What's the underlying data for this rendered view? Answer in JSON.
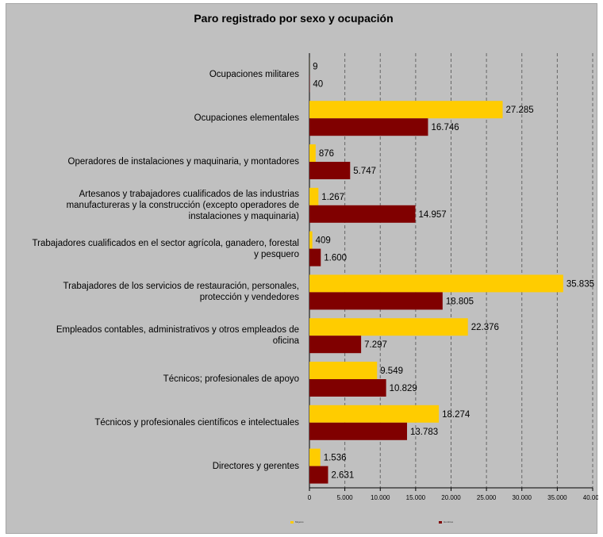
{
  "chart_data": {
    "type": "bar",
    "orientation": "horizontal",
    "title": "Paro registrado por sexo y ocupación",
    "categories": [
      "Ocupaciones militares",
      "Ocupaciones elementales",
      "Operadores de instalaciones y maquinaria, y montadores",
      "Artesanos y trabajadores cualificados de las industrias manufactureras y la construcción (excepto operadores de instalaciones y maquinaria)",
      "Trabajadores cualificados en el sector agrícola, ganadero, forestal y pesquero",
      "Trabajadores de los servicios de restauración, personales, protección y vendedores",
      "Empleados contables, administrativos y otros empleados de oficina",
      "Técnicos; profesionales de apoyo",
      "Técnicos y profesionales científicos e intelectuales",
      "Directores y gerentes"
    ],
    "series": [
      {
        "name": "Mujeres",
        "color": "#ffcc00",
        "values": [
          9,
          27285,
          876,
          1267,
          409,
          35835,
          22376,
          9549,
          18274,
          1536
        ],
        "labels": [
          "9",
          "27.285",
          "876",
          "1.267",
          "409",
          "35.835",
          "22.376",
          "9.549",
          "18.274",
          "1.536"
        ]
      },
      {
        "name": "Hombres",
        "color": "#800000",
        "values": [
          40,
          16746,
          5747,
          14957,
          1600,
          18805,
          7297,
          10829,
          13783,
          2631
        ],
        "labels": [
          "40",
          "16.746",
          "5.747",
          "14.957",
          "1.600",
          "18.805",
          "7.297",
          "10.829",
          "13.783",
          "2.631"
        ]
      }
    ],
    "xlim": [
      0,
      40000
    ],
    "xticks": [
      0,
      5000,
      10000,
      15000,
      20000,
      25000,
      30000,
      35000,
      40000
    ],
    "xtick_labels": [
      "0",
      "5.000",
      "10.000",
      "15.000",
      "20.000",
      "25.000",
      "30.000",
      "35.000",
      "40.000"
    ],
    "grid": "vertical dashed",
    "legend_position": "bottom"
  }
}
